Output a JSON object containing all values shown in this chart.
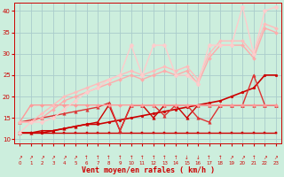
{
  "xlabel": "Vent moyen/en rafales ( km/h )",
  "bg_color": "#cceedd",
  "grid_color": "#aacccc",
  "xlim": [
    -0.5,
    23.5
  ],
  "ylim": [
    9,
    42
  ],
  "yticks": [
    10,
    15,
    20,
    25,
    30,
    35,
    40
  ],
  "xticks": [
    0,
    1,
    2,
    3,
    4,
    5,
    6,
    7,
    8,
    9,
    10,
    11,
    12,
    13,
    14,
    15,
    16,
    17,
    18,
    19,
    20,
    21,
    22,
    23
  ],
  "lines": [
    {
      "x": [
        0,
        1,
        2,
        3,
        4,
        5,
        6,
        7,
        8,
        9,
        10,
        11,
        12,
        13,
        14,
        15,
        16,
        17,
        18,
        19,
        20,
        21,
        22,
        23
      ],
      "y": [
        11.5,
        11.5,
        11.5,
        11.5,
        11.5,
        11.5,
        11.5,
        11.5,
        11.5,
        11.5,
        11.5,
        11.5,
        11.5,
        11.5,
        11.5,
        11.5,
        11.5,
        11.5,
        11.5,
        11.5,
        11.5,
        11.5,
        11.5,
        11.5
      ],
      "color": "#cc0000",
      "lw": 1.0,
      "marker": "s",
      "ms": 2.0
    },
    {
      "x": [
        0,
        1,
        2,
        3,
        4,
        5,
        6,
        7,
        8,
        9,
        10,
        11,
        12,
        13,
        14,
        15,
        16,
        17,
        18,
        19,
        20,
        21,
        22,
        23
      ],
      "y": [
        11.5,
        11.5,
        11.5,
        12,
        12.5,
        13,
        13.5,
        13.5,
        14,
        14.5,
        15,
        15.5,
        16,
        16.5,
        17,
        17.5,
        18,
        18.5,
        19,
        20,
        21,
        22,
        25,
        25
      ],
      "color": "#cc0000",
      "lw": 1.2,
      "marker": "o",
      "ms": 2.0
    },
    {
      "x": [
        0,
        1,
        2,
        3,
        4,
        5,
        6,
        7,
        8,
        9,
        10,
        11,
        12,
        13,
        14,
        15,
        16,
        17,
        18,
        19,
        20,
        21,
        22,
        23
      ],
      "y": [
        11.5,
        11.5,
        12,
        12,
        12.5,
        13,
        13.5,
        14,
        18,
        12,
        18,
        18,
        15,
        18,
        18,
        15,
        18,
        18,
        18,
        18,
        18,
        18,
        18,
        18
      ],
      "color": "#cc0000",
      "lw": 1.0,
      "marker": "^",
      "ms": 2.5
    },
    {
      "x": [
        0,
        1,
        2,
        3,
        4,
        5,
        6,
        7,
        8,
        9,
        10,
        11,
        12,
        13,
        14,
        15,
        16,
        17,
        18,
        19,
        20,
        21,
        22,
        23
      ],
      "y": [
        14.0,
        14.5,
        15,
        15.5,
        16,
        16.5,
        17,
        17.5,
        18.5,
        12,
        18,
        18,
        18,
        15.5,
        18,
        18,
        15,
        14,
        18,
        18,
        18,
        25,
        18,
        18
      ],
      "color": "#dd3333",
      "lw": 1.0,
      "marker": "^",
      "ms": 2.5
    },
    {
      "x": [
        0,
        1,
        2,
        3,
        4,
        5,
        6,
        7,
        8,
        9,
        10,
        11,
        12,
        13,
        14,
        15,
        16,
        17,
        18,
        19,
        20,
        21,
        22,
        23
      ],
      "y": [
        14,
        18,
        18,
        18,
        18,
        18,
        18,
        18,
        18,
        18,
        18,
        18,
        18,
        18,
        18,
        18,
        18,
        18,
        18,
        18,
        18,
        18,
        18,
        18
      ],
      "color": "#ff9999",
      "lw": 1.0,
      "marker": "D",
      "ms": 2.0
    },
    {
      "x": [
        0,
        1,
        2,
        3,
        4,
        5,
        6,
        7,
        8,
        9,
        10,
        11,
        12,
        13,
        14,
        15,
        16,
        17,
        18,
        19,
        20,
        21,
        22,
        23
      ],
      "y": [
        14,
        14,
        15,
        17,
        19,
        20,
        21,
        22,
        23,
        24,
        25,
        24,
        25,
        26,
        25,
        26,
        23,
        29,
        32,
        32,
        32,
        29,
        36,
        35
      ],
      "color": "#ffaaaa",
      "lw": 1.0,
      "marker": "D",
      "ms": 2.0
    },
    {
      "x": [
        0,
        1,
        2,
        3,
        4,
        5,
        6,
        7,
        8,
        9,
        10,
        11,
        12,
        13,
        14,
        15,
        16,
        17,
        18,
        19,
        20,
        21,
        22,
        23
      ],
      "y": [
        14,
        14,
        16,
        18,
        20,
        21,
        22,
        23,
        24,
        25,
        26,
        25,
        26,
        27,
        26,
        27,
        24,
        30,
        33,
        33,
        33,
        30,
        37,
        36
      ],
      "color": "#ffbbbb",
      "lw": 1.0,
      "marker": "D",
      "ms": 2.0
    },
    {
      "x": [
        0,
        1,
        2,
        3,
        4,
        5,
        6,
        7,
        8,
        9,
        10,
        11,
        12,
        13,
        14,
        15,
        16,
        17,
        18,
        19,
        20,
        21,
        22,
        23
      ],
      "y": [
        11.5,
        14,
        14,
        15,
        17,
        19,
        21,
        22,
        24,
        25,
        32,
        25,
        32,
        32,
        25,
        25,
        23,
        32,
        32,
        32,
        41,
        30,
        40,
        41
      ],
      "color": "#ffcccc",
      "lw": 1.0,
      "marker": "D",
      "ms": 2.5
    }
  ],
  "arrow_symbols": [
    "↗",
    "↗",
    "↗",
    "↗",
    "↗",
    "↗",
    "↑",
    "↑",
    "↑",
    "↑",
    "↑",
    "↑",
    "↑",
    "↑",
    "↑",
    "↓",
    "↓",
    "↑",
    "↑",
    "↗",
    "↗",
    "↑",
    "↗",
    "↗"
  ]
}
